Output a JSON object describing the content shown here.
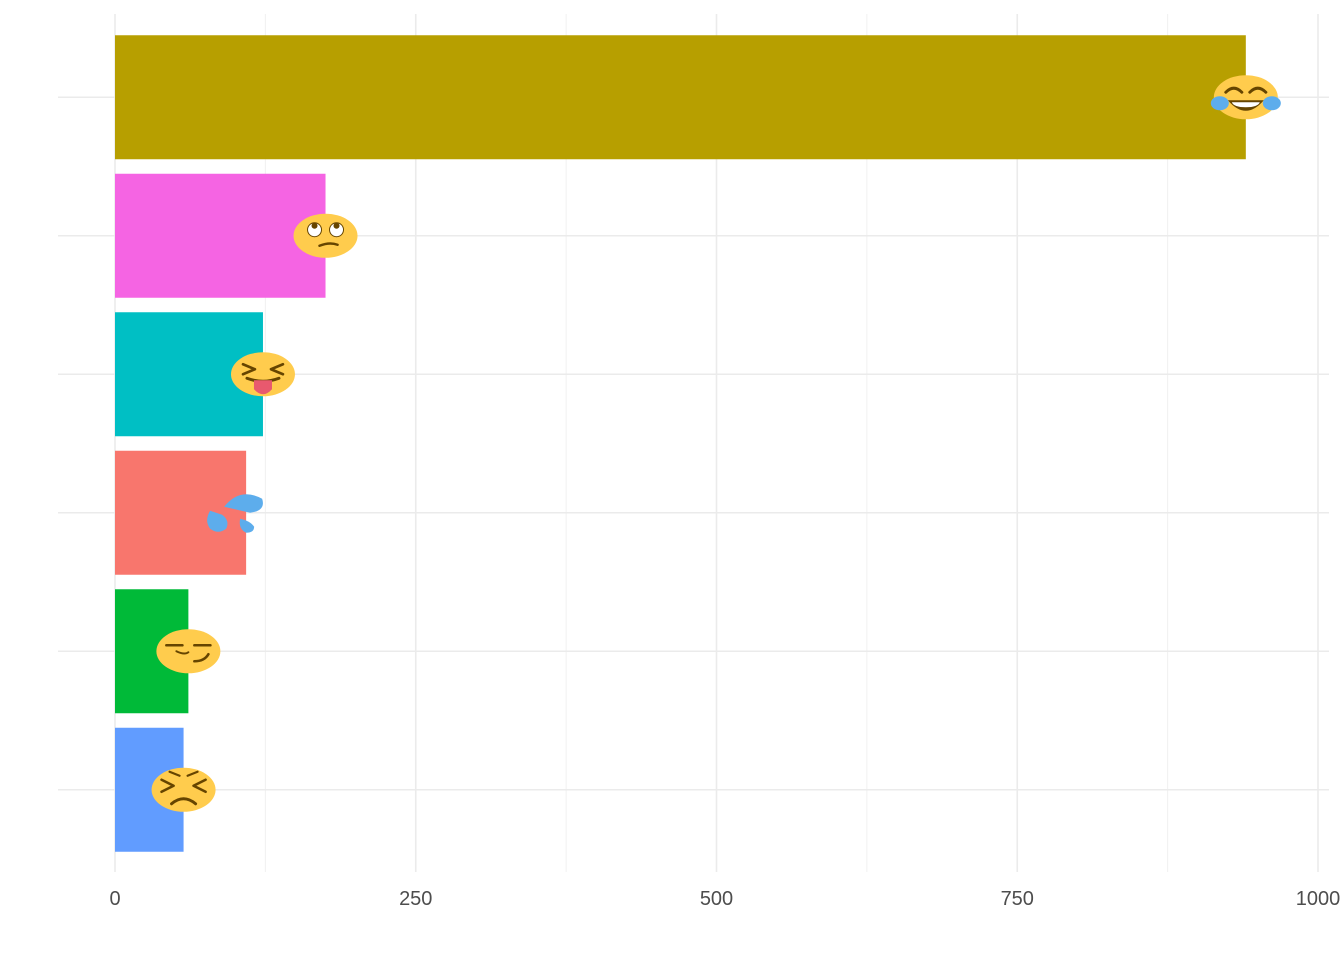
{
  "chart_data": {
    "type": "bar",
    "orientation": "horizontal",
    "title": "",
    "xlabel": "",
    "ylabel": "",
    "grid": true,
    "legend": "none",
    "xlim": [
      0,
      1000
    ],
    "x_ticks": [
      0,
      250,
      500,
      750,
      1000
    ],
    "x_tick_labels": [
      "0",
      "250",
      "500",
      "750",
      "1000"
    ],
    "categories": [
      "face-with-tears-of-joy",
      "face-with-rolling-eyes",
      "squinting-face-with-tongue",
      "sweat-droplets",
      "smirking-face",
      "persevering-face"
    ],
    "values": [
      940,
      175,
      123,
      109,
      61,
      57
    ],
    "colors": [
      "#B79F00",
      "#F564E3",
      "#00BFC4",
      "#F8766D",
      "#00BA38",
      "#619CFF"
    ],
    "icons": [
      "face-with-tears-of-joy-icon",
      "face-with-rolling-eyes-icon",
      "squinting-face-with-tongue-icon",
      "sweat-droplets-icon",
      "smirking-face-icon",
      "persevering-face-icon"
    ]
  }
}
